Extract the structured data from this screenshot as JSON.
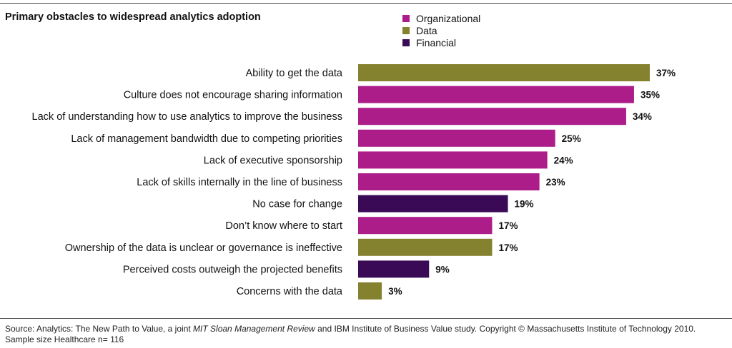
{
  "title": "Primary obstacles to widespread analytics adoption",
  "legend": [
    {
      "label": "Organizational",
      "color": "#ad1d8a"
    },
    {
      "label": "Data",
      "color": "#84822f"
    },
    {
      "label": "Financial",
      "color": "#3a0a57"
    }
  ],
  "chart_data": {
    "type": "bar",
    "orientation": "horizontal",
    "categories": [
      "Ability to get the data",
      "Culture does not encourage sharing information",
      "Lack of understanding how to use analytics to improve the business",
      "Lack of management bandwidth due to competing priorities",
      "Lack of executive sponsorship",
      "Lack of skills internally in the line of business",
      "No case for change",
      "Don’t know where to start",
      "Ownership of the data is unclear or governance is ineffective",
      "Perceived costs outweigh the projected benefits",
      "Concerns with the data"
    ],
    "values": [
      37,
      35,
      34,
      25,
      24,
      23,
      19,
      17,
      17,
      9,
      3
    ],
    "value_labels": [
      "37%",
      "35%",
      "34%",
      "25%",
      "24%",
      "23%",
      "19%",
      "17%",
      "17%",
      "9%",
      "3%"
    ],
    "groups": [
      "Data",
      "Organizational",
      "Organizational",
      "Organizational",
      "Organizational",
      "Organizational",
      "Financial",
      "Organizational",
      "Data",
      "Financial",
      "Data"
    ],
    "xlim": [
      0,
      37
    ],
    "grid": false,
    "legend_position": "top-right"
  },
  "footer": {
    "source_prefix": "Source: Analytics: The New Path to Value, a joint ",
    "source_italic": "MIT Sloan Management Review",
    "source_suffix": " and IBM Institute of Business Value study. Copyright © Massachusetts Institute of Technology 2010.",
    "sample": "Sample size Healthcare n= 116"
  }
}
